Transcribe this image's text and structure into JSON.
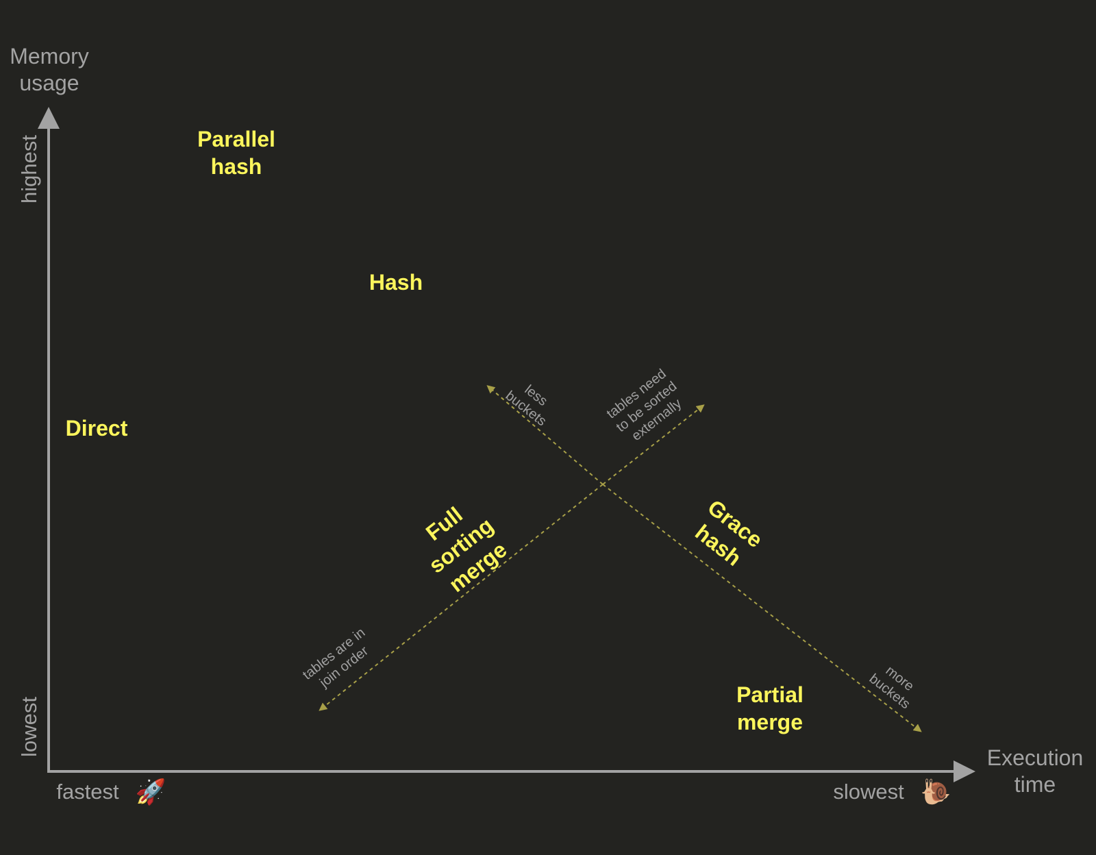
{
  "y_axis": {
    "title_lines": [
      "Memory",
      "usage"
    ],
    "high_label": "highest",
    "low_label": "lowest"
  },
  "x_axis": {
    "title_lines": [
      "Execution",
      "time"
    ],
    "low_label": "fastest",
    "high_label": "slowest",
    "low_icon": "rocket-icon",
    "high_icon": "snail-icon"
  },
  "algorithms": {
    "parallel_hash": [
      "Parallel",
      "hash"
    ],
    "hash": [
      "Hash"
    ],
    "direct": [
      "Direct"
    ],
    "full_sorting_merge": [
      "Full",
      "sorting",
      "merge"
    ],
    "grace_hash": [
      "Grace",
      "hash"
    ],
    "partial_merge": [
      "Partial",
      "merge"
    ]
  },
  "annotations": {
    "less_buckets": [
      "less",
      "buckets"
    ],
    "more_buckets": [
      "more",
      "buckets"
    ],
    "sorted_externally": [
      "tables need",
      "to be sorted",
      "externally"
    ],
    "join_order": [
      "tables are in",
      "join order"
    ]
  },
  "colors": {
    "background": "#232320",
    "axis": "#a3a3a3",
    "algorithm": "#fbf55c",
    "trend_line": "#a8a048"
  }
}
